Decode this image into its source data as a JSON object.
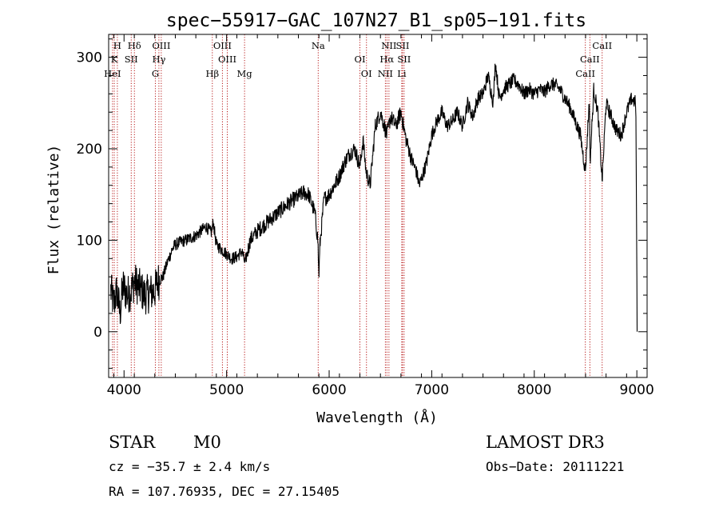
{
  "chart_data": {
    "type": "line",
    "title": "spec−55917−GAC_107N27_B1_sp05−191.fits",
    "xlabel": "Wavelength (Å)",
    "ylabel": "Flux (relative)",
    "xlim": [
      3850,
      9100
    ],
    "ylim": [
      -50,
      325
    ],
    "xticks": [
      4000,
      5000,
      6000,
      7000,
      8000,
      9000
    ],
    "xtick_labels": [
      "4000",
      "5000",
      "6000",
      "7000",
      "8000",
      "9000"
    ],
    "yticks": [
      0,
      100,
      200,
      300
    ],
    "ytick_labels": [
      "0",
      "100",
      "200",
      "300"
    ],
    "grid": false,
    "legend": "none",
    "series": [
      {
        "name": "flux",
        "anchors": [
          [
            3870,
            45
          ],
          [
            3900,
            30
          ],
          [
            3930,
            45
          ],
          [
            3960,
            20
          ],
          [
            3990,
            50
          ],
          [
            4030,
            40
          ],
          [
            4070,
            45
          ],
          [
            4100,
            55
          ],
          [
            4150,
            48
          ],
          [
            4200,
            40
          ],
          [
            4250,
            42
          ],
          [
            4300,
            45
          ],
          [
            4330,
            55
          ],
          [
            4380,
            60
          ],
          [
            4420,
            75
          ],
          [
            4470,
            90
          ],
          [
            4500,
            95
          ],
          [
            4550,
            98
          ],
          [
            4600,
            100
          ],
          [
            4700,
            105
          ],
          [
            4750,
            110
          ],
          [
            4800,
            115
          ],
          [
            4850,
            108
          ],
          [
            4870,
            120
          ],
          [
            4900,
            95
          ],
          [
            4950,
            90
          ],
          [
            5000,
            85
          ],
          [
            5050,
            80
          ],
          [
            5100,
            82
          ],
          [
            5150,
            88
          ],
          [
            5180,
            75
          ],
          [
            5230,
            100
          ],
          [
            5300,
            110
          ],
          [
            5400,
            120
          ],
          [
            5500,
            130
          ],
          [
            5600,
            140
          ],
          [
            5700,
            148
          ],
          [
            5750,
            152
          ],
          [
            5800,
            150
          ],
          [
            5860,
            130
          ],
          [
            5890,
            100
          ],
          [
            5900,
            60
          ],
          [
            5910,
            95
          ],
          [
            5950,
            145
          ],
          [
            6000,
            150
          ],
          [
            6050,
            160
          ],
          [
            6100,
            170
          ],
          [
            6150,
            185
          ],
          [
            6200,
            195
          ],
          [
            6250,
            200
          ],
          [
            6300,
            180
          ],
          [
            6330,
            210
          ],
          [
            6360,
            175
          ],
          [
            6400,
            160
          ],
          [
            6450,
            225
          ],
          [
            6500,
            240
          ],
          [
            6563,
            215
          ],
          [
            6600,
            235
          ],
          [
            6650,
            225
          ],
          [
            6700,
            240
          ],
          [
            6750,
            210
          ],
          [
            6800,
            190
          ],
          [
            6850,
            175
          ],
          [
            6880,
            160
          ],
          [
            6950,
            185
          ],
          [
            7000,
            215
          ],
          [
            7050,
            230
          ],
          [
            7100,
            240
          ],
          [
            7150,
            225
          ],
          [
            7200,
            230
          ],
          [
            7250,
            240
          ],
          [
            7300,
            225
          ],
          [
            7350,
            250
          ],
          [
            7400,
            235
          ],
          [
            7450,
            255
          ],
          [
            7500,
            260
          ],
          [
            7550,
            280
          ],
          [
            7600,
            250
          ],
          [
            7620,
            295
          ],
          [
            7660,
            255
          ],
          [
            7700,
            265
          ],
          [
            7750,
            270
          ],
          [
            7800,
            275
          ],
          [
            7850,
            270
          ],
          [
            7900,
            260
          ],
          [
            7950,
            265
          ],
          [
            8000,
            260
          ],
          [
            8050,
            265
          ],
          [
            8100,
            262
          ],
          [
            8150,
            270
          ],
          [
            8200,
            270
          ],
          [
            8250,
            265
          ],
          [
            8300,
            255
          ],
          [
            8350,
            245
          ],
          [
            8400,
            230
          ],
          [
            8450,
            215
          ],
          [
            8498,
            175
          ],
          [
            8540,
            260
          ],
          [
            8542,
            180
          ],
          [
            8580,
            265
          ],
          [
            8620,
            240
          ],
          [
            8662,
            165
          ],
          [
            8700,
            250
          ],
          [
            8750,
            235
          ],
          [
            8800,
            220
          ],
          [
            8850,
            215
          ],
          [
            8900,
            240
          ],
          [
            8950,
            255
          ],
          [
            8990,
            250
          ],
          [
            9000,
            60
          ],
          [
            9005,
            0
          ]
        ]
      }
    ],
    "lines_upper": [
      {
        "label": "H",
        "x": 3935
      },
      {
        "label": "K",
        "x": 3905
      },
      {
        "label": "HeI",
        "x": 3888
      },
      {
        "label": "Hδ",
        "x": 4101
      },
      {
        "label": "SII",
        "x": 4070
      },
      {
        "label": "G",
        "x": 4305
      },
      {
        "label": "OIII",
        "x": 4363
      },
      {
        "label": "Hγ",
        "x": 4340
      },
      {
        "label": "Hβ",
        "x": 4861
      },
      {
        "label": "OIII",
        "x": 4959
      },
      {
        "label": "OIII",
        "x": 5007
      },
      {
        "label": "Mg",
        "x": 5175
      },
      {
        "label": "Na",
        "x": 5893
      },
      {
        "label": "OI",
        "x": 6300
      },
      {
        "label": "OI",
        "x": 6364
      },
      {
        "label": "NII",
        "x": 6583
      },
      {
        "label": "Hα",
        "x": 6563
      },
      {
        "label": "NII",
        "x": 6548
      },
      {
        "label": "SII",
        "x": 6716
      },
      {
        "label": "SII",
        "x": 6731
      },
      {
        "label": "Li",
        "x": 6708
      },
      {
        "label": "CaII",
        "x": 8662
      },
      {
        "label": "CaII",
        "x": 8542
      },
      {
        "label": "CaII",
        "x": 8498
      }
    ]
  },
  "info": {
    "object_class": "STAR",
    "subclass": "M0",
    "survey": "LAMOST DR3",
    "cz": "cz = −35.7 ± 2.4 km/s",
    "obs_date": "Obs−Date: 20111221",
    "radec": "RA = 107.76935, DEC =  27.15405"
  },
  "colors": {
    "spectrum": "#000000",
    "line_markers": "#b00000",
    "axes": "#000000"
  }
}
